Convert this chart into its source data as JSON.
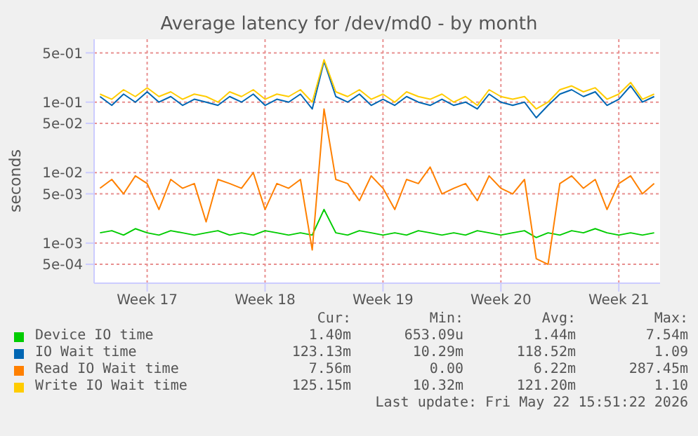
{
  "chart_data": {
    "type": "line",
    "title": "Average latency for /dev/md0 - by month",
    "ylabel": "seconds",
    "categories": [
      null,
      null,
      null,
      null,
      "Week 17",
      null,
      null,
      null,
      null,
      null,
      null,
      null,
      null,
      null,
      "Week 18",
      null,
      null,
      null,
      null,
      null,
      null,
      null,
      null,
      null,
      "Week 19",
      null,
      null,
      null,
      null,
      null,
      null,
      null,
      null,
      null,
      "Week 20",
      null,
      null,
      null,
      null,
      null,
      null,
      null,
      null,
      null,
      "Week 21",
      null,
      null,
      null
    ],
    "series": [
      {
        "name": "Device IO time",
        "color": "#00cc00",
        "values": [
          0.0014,
          0.0015,
          0.0013,
          0.0016,
          0.0014,
          0.0013,
          0.0015,
          0.0014,
          0.0013,
          0.0014,
          0.0015,
          0.0013,
          0.0014,
          0.0013,
          0.0015,
          0.0014,
          0.0013,
          0.0014,
          0.0013,
          0.003,
          0.0014,
          0.0013,
          0.0015,
          0.0014,
          0.0013,
          0.0014,
          0.0013,
          0.0015,
          0.0014,
          0.0013,
          0.0014,
          0.0013,
          0.0015,
          0.0014,
          0.0013,
          0.0014,
          0.0015,
          0.0012,
          0.0014,
          0.0013,
          0.0015,
          0.0014,
          0.0016,
          0.0014,
          0.0013,
          0.0014,
          0.0013,
          0.0014
        ]
      },
      {
        "name": "IO Wait time",
        "color": "#0066b3",
        "values": [
          0.12,
          0.09,
          0.13,
          0.1,
          0.14,
          0.1,
          0.12,
          0.09,
          0.11,
          0.1,
          0.09,
          0.12,
          0.1,
          0.13,
          0.09,
          0.11,
          0.1,
          0.13,
          0.08,
          0.38,
          0.12,
          0.1,
          0.13,
          0.09,
          0.11,
          0.09,
          0.12,
          0.1,
          0.09,
          0.11,
          0.09,
          0.1,
          0.08,
          0.13,
          0.1,
          0.09,
          0.1,
          0.06,
          0.09,
          0.13,
          0.15,
          0.12,
          0.14,
          0.09,
          0.11,
          0.17,
          0.1,
          0.12
        ]
      },
      {
        "name": "Read IO Wait time",
        "color": "#ff8000",
        "values": [
          0.006,
          0.008,
          0.005,
          0.009,
          0.007,
          0.003,
          0.008,
          0.006,
          0.007,
          0.002,
          0.008,
          0.007,
          0.006,
          0.01,
          0.003,
          0.007,
          0.006,
          0.008,
          0.0008,
          0.08,
          0.008,
          0.007,
          0.004,
          0.009,
          0.006,
          0.003,
          0.008,
          0.007,
          0.012,
          0.005,
          0.006,
          0.007,
          0.004,
          0.009,
          0.006,
          0.005,
          0.008,
          0.0006,
          0.0005,
          0.007,
          0.009,
          0.006,
          0.008,
          0.003,
          0.007,
          0.009,
          0.005,
          0.007
        ]
      },
      {
        "name": "Write IO Wait time",
        "color": "#ffcc00",
        "values": [
          0.13,
          0.11,
          0.15,
          0.12,
          0.16,
          0.12,
          0.14,
          0.11,
          0.13,
          0.12,
          0.1,
          0.14,
          0.12,
          0.15,
          0.11,
          0.13,
          0.12,
          0.15,
          0.1,
          0.4,
          0.14,
          0.12,
          0.15,
          0.11,
          0.13,
          0.1,
          0.14,
          0.12,
          0.11,
          0.13,
          0.1,
          0.12,
          0.09,
          0.15,
          0.12,
          0.11,
          0.12,
          0.08,
          0.1,
          0.15,
          0.17,
          0.14,
          0.16,
          0.11,
          0.13,
          0.19,
          0.11,
          0.13
        ]
      }
    ],
    "log": "y",
    "grid": true,
    "legend": "bottom",
    "ylim": [
      0.00027,
      0.78
    ],
    "yticks": [
      {
        "value": 0.0005,
        "label": "5e-04"
      },
      {
        "value": 0.001,
        "label": "1e-03"
      },
      {
        "value": 0.005,
        "label": "5e-03"
      },
      {
        "value": 0.01,
        "label": "1e-02"
      },
      {
        "value": 0.05,
        "label": "5e-02"
      },
      {
        "value": 0.1,
        "label": "1e-01"
      },
      {
        "value": 0.5,
        "label": "5e-01"
      }
    ],
    "annotations": [
      "Cur:",
      "Min:",
      "Avg:",
      "Max:",
      "1.40m",
      "653.09u",
      "1.44m",
      "7.54m",
      "123.13m",
      "10.29m",
      "118.52m",
      "1.09",
      "7.56m",
      "0.00",
      "6.22m",
      "287.45m",
      "125.15m",
      "10.32m",
      "121.20m",
      "1.10",
      "Last update: Fri May 22 15:51:22 2026"
    ]
  }
}
